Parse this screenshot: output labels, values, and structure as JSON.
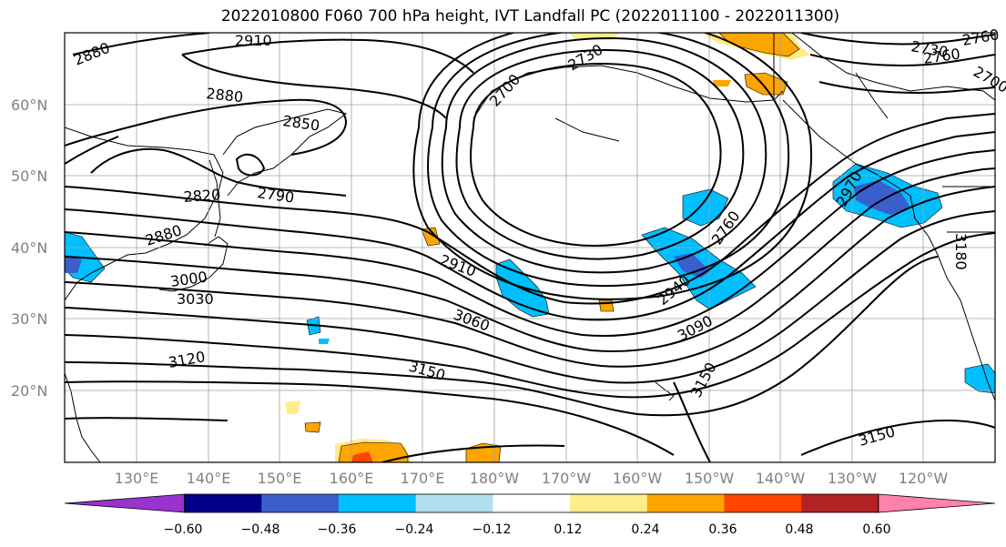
{
  "title": "2022010800 F060 700 hPa height, IVT Landfall PC (2022011100 - 2022011300)",
  "lat_labels": [
    "60°N",
    "50°N",
    "40°N",
    "30°N",
    "20°N"
  ],
  "lon_labels": [
    "130°E",
    "140°E",
    "150°E",
    "160°E",
    "170°E",
    "180°W",
    "170°W",
    "160°W",
    "150°W",
    "140°W",
    "130°W",
    "120°W"
  ],
  "contour_labels": [
    "2880",
    "2910",
    "2880",
    "2850",
    "2820",
    "2790",
    "2880",
    "3000",
    "3030",
    "2910",
    "3060",
    "3120",
    "3150",
    "2700",
    "2730",
    "2760",
    "2940",
    "3090",
    "3150",
    "3150",
    "2970",
    "3180",
    "2760",
    "2730",
    "2760",
    "2700"
  ],
  "colorbar": {
    "ticks": [
      "−0.60",
      "−0.48",
      "−0.36",
      "−0.24",
      "−0.12",
      "0.12",
      "0.24",
      "0.36",
      "0.48",
      "0.60"
    ],
    "colors": [
      "#9a32cd",
      "#00008b",
      "#3a5fcd",
      "#00bfff",
      "#b2dfee",
      "#ffffff",
      "#ffec8b",
      "#ffa500",
      "#ff4500",
      "#b22222",
      "#ff82ab"
    ]
  }
}
